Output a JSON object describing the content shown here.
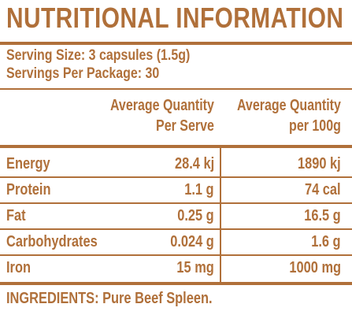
{
  "title": "NUTRITIONAL INFORMATION",
  "serving": {
    "size": "Serving Size: 3 capsules (1.5g)",
    "per_package": "Servings Per Package: 30"
  },
  "columns": {
    "per_serve": [
      "Average Quantity",
      "Per Serve"
    ],
    "per_100g": [
      "Average Quantity",
      "per 100g"
    ]
  },
  "rows": [
    {
      "label": "Energy",
      "per_serve": "28.4 kj",
      "per_100g": "1890 kj"
    },
    {
      "label": "Protein",
      "per_serve": "1.1 g",
      "per_100g": "74 cal"
    },
    {
      "label": "Fat",
      "per_serve": "0.25 g",
      "per_100g": "16.5 g"
    },
    {
      "label": "Carbohydrates",
      "per_serve": "0.024 g",
      "per_100g": "1.6 g"
    },
    {
      "label": "Iron",
      "per_serve": "15 mg",
      "per_100g": "1000 mg"
    }
  ],
  "ingredients": "INGREDIENTS: Pure Beef Spleen.",
  "colors": {
    "text": "#b0703a",
    "background": "#ffffff"
  }
}
